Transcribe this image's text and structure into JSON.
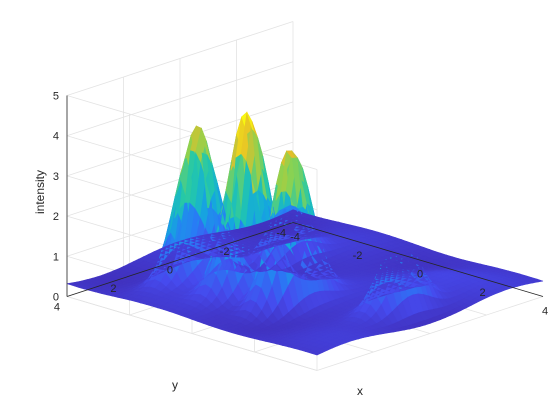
{
  "chart_data": {
    "type": "surface",
    "colormap": "parula",
    "xlabel": "x",
    "ylabel": "y",
    "zlabel": "intensity",
    "xlim": [
      -4,
      4
    ],
    "ylim": [
      -4,
      4
    ],
    "zlim": [
      0,
      5
    ],
    "x_ticks": [
      "-4",
      "-2",
      "0",
      "2",
      "4"
    ],
    "y_ticks": [
      "-4",
      "-2",
      "0",
      "2",
      "4"
    ],
    "z_ticks": [
      "0",
      "1",
      "2",
      "3",
      "4",
      "5"
    ],
    "grid": true,
    "view": "azimuth -37.5, elevation 30",
    "peaks": [
      {
        "x": -0.5,
        "y": 1.5,
        "height": 4.5
      },
      {
        "x": 0.8,
        "y": 1.4,
        "height": 3.9
      },
      {
        "x": -2.0,
        "y": 1.6,
        "height": 3.8
      },
      {
        "x": 3.0,
        "y": 0.0,
        "height": 1.9
      },
      {
        "x": -1.5,
        "y": -1.0,
        "height": 1.4
      }
    ]
  }
}
